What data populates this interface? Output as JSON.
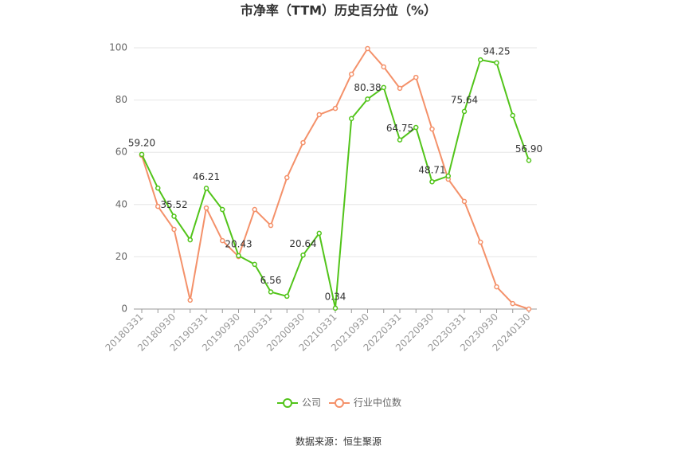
{
  "chart_data": {
    "type": "line",
    "title": "市净率（TTM）历史百分位（%）",
    "categories": [
      "20180331",
      null,
      "20180930",
      null,
      "20190331",
      null,
      "20190930",
      null,
      "20200331",
      null,
      "20200930",
      null,
      "20210331",
      null,
      "20210930",
      null,
      "20220331",
      null,
      "20220930",
      null,
      "20230331",
      null,
      "20230930",
      null,
      "20240130"
    ],
    "series": [
      {
        "name": "公司",
        "color": "#52c41a",
        "values": [
          59.2,
          46.3,
          35.52,
          26.5,
          46.21,
          38.1,
          20.43,
          17.1,
          6.56,
          4.9,
          20.64,
          29.0,
          0.34,
          72.9,
          80.38,
          84.8,
          64.75,
          69.5,
          48.71,
          50.9,
          75.64,
          95.4,
          94.25,
          74.1,
          56.9
        ],
        "value_labels": [
          "59.20",
          null,
          "35.52",
          null,
          "46.21",
          null,
          "20.43",
          null,
          "6.56",
          null,
          "20.64",
          null,
          "0.34",
          null,
          "80.38",
          null,
          "64.75",
          null,
          "48.71",
          null,
          "75.64",
          null,
          "94.25",
          null,
          "56.90"
        ]
      },
      {
        "name": "行业中位数",
        "color": "#f4916a",
        "values": [
          58.8,
          39.3,
          30.5,
          3.4,
          38.7,
          26.2,
          20.1,
          38.1,
          32.0,
          50.3,
          63.7,
          74.4,
          76.8,
          89.9,
          99.7,
          92.7,
          84.5,
          88.7,
          68.9,
          49.7,
          41.2,
          25.6,
          8.5,
          2.1,
          0
        ]
      }
    ],
    "ylim": [
      0,
      100
    ],
    "yticks": [
      0,
      20,
      40,
      60,
      80,
      100
    ],
    "grid": true,
    "legend": "bottom",
    "source": "数据来源：恒生聚源"
  }
}
